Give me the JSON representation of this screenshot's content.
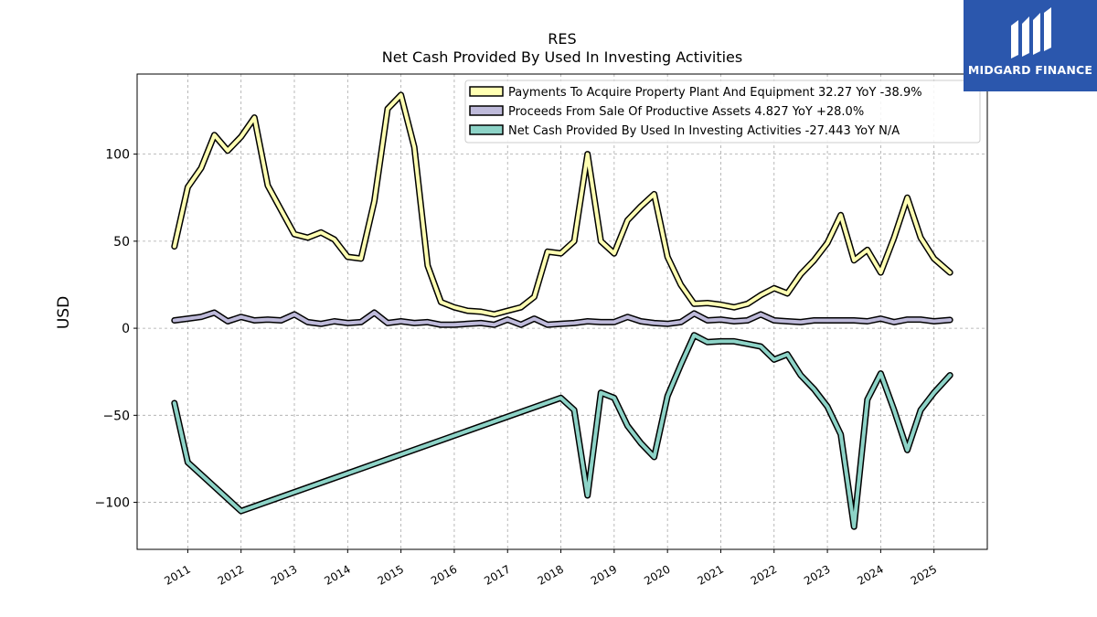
{
  "logo": {
    "text": "MIDGARD FINANCE"
  },
  "chart_data": {
    "type": "line",
    "title": "RES",
    "subtitle": "Net Cash Provided By Used In Investing Activities",
    "ylabel": "USD",
    "xlabel": "",
    "ylim": [
      -127,
      146
    ],
    "xlim": [
      2010.05,
      2026.0
    ],
    "yticks": [
      -100,
      -50,
      0,
      50,
      100
    ],
    "yticklabels": [
      "−100",
      "−50",
      "0",
      "50",
      "100"
    ],
    "xticks": [
      2011,
      2012,
      2013,
      2014,
      2015,
      2016,
      2017,
      2018,
      2019,
      2020,
      2021,
      2022,
      2023,
      2024,
      2025
    ],
    "xticklabels": [
      "2011",
      "2012",
      "2013",
      "2014",
      "2015",
      "2016",
      "2017",
      "2018",
      "2019",
      "2020",
      "2021",
      "2022",
      "2023",
      "2024",
      "2025"
    ],
    "grid": true,
    "legend_position": "top-right",
    "series": [
      {
        "name": "Payments To Acquire Property Plant And Equipment",
        "legend_label": "Payments To Acquire Property Plant And Equipment  32.27 YoY -38.9%",
        "color": "#ffffb3",
        "points": [
          [
            2010.75,
            47
          ],
          [
            2011.0,
            81
          ],
          [
            2011.25,
            92
          ],
          [
            2011.5,
            111
          ],
          [
            2011.75,
            102
          ],
          [
            2012.0,
            110
          ],
          [
            2012.25,
            121
          ],
          [
            2012.5,
            82
          ],
          [
            2012.75,
            68
          ],
          [
            2013.0,
            54
          ],
          [
            2013.25,
            52
          ],
          [
            2013.5,
            55
          ],
          [
            2013.75,
            51
          ],
          [
            2014.0,
            41
          ],
          [
            2014.25,
            40
          ],
          [
            2014.5,
            73
          ],
          [
            2014.75,
            126
          ],
          [
            2015.0,
            134
          ],
          [
            2015.25,
            104
          ],
          [
            2015.5,
            36
          ],
          [
            2015.75,
            15
          ],
          [
            2016.0,
            12
          ],
          [
            2016.25,
            10
          ],
          [
            2016.5,
            9.5
          ],
          [
            2016.75,
            8
          ],
          [
            2017.0,
            10
          ],
          [
            2017.25,
            12
          ],
          [
            2017.5,
            18
          ],
          [
            2017.75,
            44
          ],
          [
            2018.0,
            43
          ],
          [
            2018.25,
            50
          ],
          [
            2018.5,
            100
          ],
          [
            2018.75,
            50
          ],
          [
            2019.0,
            43
          ],
          [
            2019.25,
            62
          ],
          [
            2019.5,
            70
          ],
          [
            2019.75,
            77
          ],
          [
            2020.0,
            41
          ],
          [
            2020.25,
            25
          ],
          [
            2020.5,
            14
          ],
          [
            2020.75,
            14.5
          ],
          [
            2021.0,
            13.5
          ],
          [
            2021.25,
            12
          ],
          [
            2021.5,
            14
          ],
          [
            2021.75,
            19
          ],
          [
            2022.0,
            23
          ],
          [
            2022.25,
            20
          ],
          [
            2022.5,
            31
          ],
          [
            2022.75,
            39
          ],
          [
            2023.0,
            49
          ],
          [
            2023.25,
            65
          ],
          [
            2023.5,
            39
          ],
          [
            2023.75,
            45
          ],
          [
            2024.0,
            32
          ],
          [
            2024.25,
            52
          ],
          [
            2024.5,
            75
          ],
          [
            2024.75,
            52
          ],
          [
            2025.0,
            40
          ],
          [
            2025.3,
            32
          ]
        ]
      },
      {
        "name": "Proceeds From Sale Of Productive Assets",
        "legend_label": "Proceeds From Sale Of Productive Assets  4.827 YoY +28.0%",
        "color": "#bebada",
        "points": [
          [
            2010.75,
            4.5
          ],
          [
            2011.0,
            5.5
          ],
          [
            2011.25,
            6.5
          ],
          [
            2011.5,
            9
          ],
          [
            2011.75,
            4
          ],
          [
            2012.0,
            6.5
          ],
          [
            2012.25,
            4.5
          ],
          [
            2012.5,
            5
          ],
          [
            2012.75,
            4.5
          ],
          [
            2013.0,
            8
          ],
          [
            2013.25,
            3.5
          ],
          [
            2013.5,
            2.5
          ],
          [
            2013.75,
            4
          ],
          [
            2014.0,
            3
          ],
          [
            2014.25,
            3.5
          ],
          [
            2014.5,
            9
          ],
          [
            2014.75,
            3
          ],
          [
            2015.0,
            4
          ],
          [
            2015.25,
            3
          ],
          [
            2015.5,
            3.5
          ],
          [
            2015.75,
            2
          ],
          [
            2016.0,
            2
          ],
          [
            2016.25,
            2.5
          ],
          [
            2016.5,
            3
          ],
          [
            2016.75,
            2
          ],
          [
            2017.0,
            5
          ],
          [
            2017.25,
            2
          ],
          [
            2017.5,
            5.5
          ],
          [
            2017.75,
            2
          ],
          [
            2018.0,
            2.5
          ],
          [
            2018.25,
            3
          ],
          [
            2018.5,
            4
          ],
          [
            2018.75,
            3.5
          ],
          [
            2019.0,
            3.5
          ],
          [
            2019.25,
            6.5
          ],
          [
            2019.5,
            4
          ],
          [
            2019.75,
            3
          ],
          [
            2020.0,
            2.5
          ],
          [
            2020.25,
            3.5
          ],
          [
            2020.5,
            8.5
          ],
          [
            2020.75,
            4.5
          ],
          [
            2021.0,
            5
          ],
          [
            2021.25,
            4
          ],
          [
            2021.5,
            4.5
          ],
          [
            2021.75,
            8
          ],
          [
            2022.0,
            4.5
          ],
          [
            2022.25,
            4
          ],
          [
            2022.5,
            3.5
          ],
          [
            2022.75,
            4.5
          ],
          [
            2023.0,
            4.5
          ],
          [
            2023.25,
            4.5
          ],
          [
            2023.5,
            4.5
          ],
          [
            2023.75,
            4
          ],
          [
            2024.0,
            5.5
          ],
          [
            2024.25,
            3.5
          ],
          [
            2024.5,
            5
          ],
          [
            2024.75,
            5
          ],
          [
            2025.0,
            4
          ],
          [
            2025.3,
            4.8
          ]
        ]
      },
      {
        "name": "Net Cash Provided By Used In Investing Activities",
        "legend_label": "Net Cash Provided By Used In Investing Activities  -27.443 YoY N/A",
        "color": "#8dd3c7",
        "points": [
          [
            2010.75,
            -43
          ],
          [
            2011.0,
            -77
          ],
          [
            2012.0,
            -105
          ],
          [
            2018.0,
            -40
          ],
          [
            2018.25,
            -47
          ],
          [
            2018.5,
            -96
          ],
          [
            2018.75,
            -37
          ],
          [
            2019.0,
            -40
          ],
          [
            2019.25,
            -56
          ],
          [
            2019.5,
            -66
          ],
          [
            2019.75,
            -74
          ],
          [
            2020.0,
            -39
          ],
          [
            2020.25,
            -21
          ],
          [
            2020.5,
            -4
          ],
          [
            2020.75,
            -8
          ],
          [
            2021.0,
            -7.5
          ],
          [
            2021.25,
            -7.5
          ],
          [
            2021.5,
            -9
          ],
          [
            2021.75,
            -10.5
          ],
          [
            2022.0,
            -18
          ],
          [
            2022.25,
            -15
          ],
          [
            2022.5,
            -27
          ],
          [
            2022.75,
            -35
          ],
          [
            2023.0,
            -45
          ],
          [
            2023.25,
            -61
          ],
          [
            2023.5,
            -114
          ],
          [
            2023.75,
            -41
          ],
          [
            2024.0,
            -26
          ],
          [
            2024.25,
            -47
          ],
          [
            2024.5,
            -70
          ],
          [
            2024.75,
            -47
          ],
          [
            2025.0,
            -37
          ],
          [
            2025.3,
            -27
          ]
        ]
      }
    ]
  }
}
